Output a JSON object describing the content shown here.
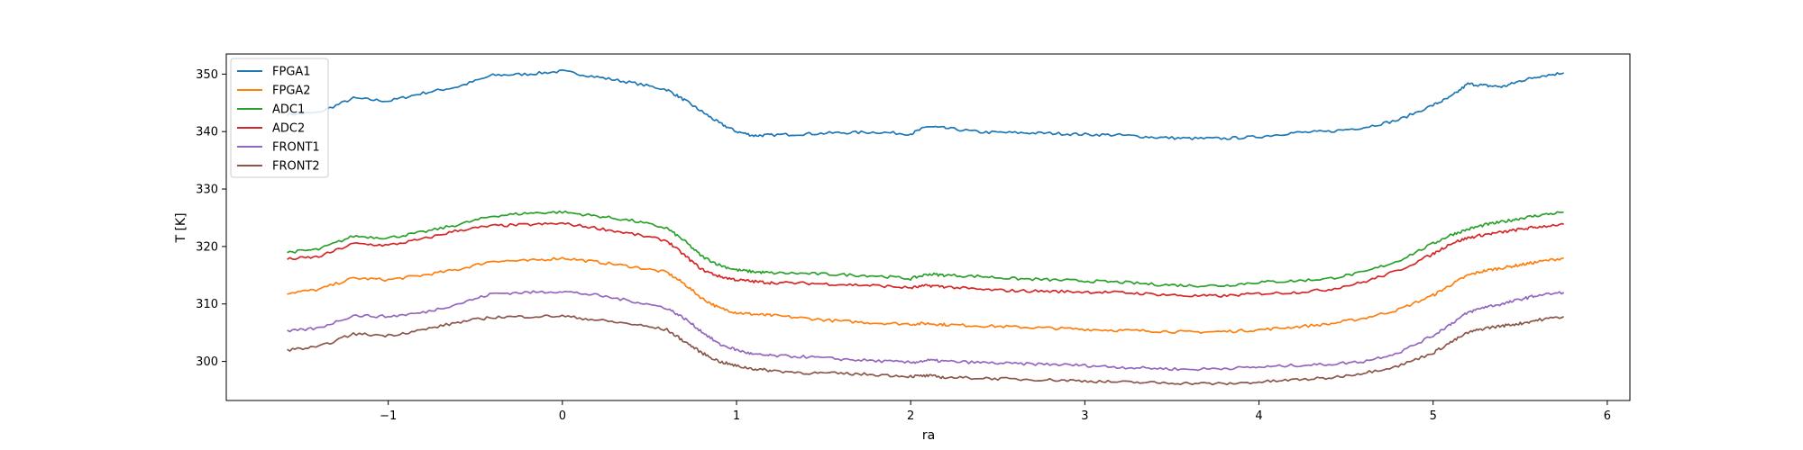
{
  "chart_data": {
    "type": "line",
    "title": "",
    "xlabel": "ra",
    "ylabel": "T [K]",
    "xlim": [
      -1.93,
      6.13
    ],
    "ylim": [
      293.2,
      353.5
    ],
    "xticks": [
      -1,
      0,
      1,
      2,
      3,
      4,
      5,
      6
    ],
    "xtick_labels": [
      "−1",
      "0",
      "1",
      "2",
      "3",
      "4",
      "5",
      "6"
    ],
    "yticks": [
      300,
      310,
      320,
      330,
      340,
      350
    ],
    "ytick_labels": [
      "300",
      "310",
      "320",
      "330",
      "340",
      "350"
    ],
    "grid": false,
    "legend_position": "top-left",
    "x": [
      -1.58,
      -1.4,
      -1.2,
      -1.0,
      -0.8,
      -0.6,
      -0.4,
      -0.2,
      0.0,
      0.2,
      0.4,
      0.6,
      0.7,
      0.8,
      0.9,
      1.0,
      1.1,
      1.2,
      1.4,
      1.6,
      1.8,
      2.0,
      2.1,
      2.2,
      2.4,
      2.6,
      2.8,
      3.0,
      3.2,
      3.4,
      3.6,
      3.8,
      4.0,
      4.2,
      4.4,
      4.6,
      4.8,
      5.0,
      5.1,
      5.2,
      5.3,
      5.4,
      5.5,
      5.6,
      5.75
    ],
    "series": [
      {
        "name": "FPGA1",
        "color": "#1f77b4",
        "values": [
          343.0,
          343.3,
          345.8,
          345.3,
          346.7,
          347.8,
          349.8,
          350.0,
          350.5,
          349.5,
          348.5,
          347.3,
          345.5,
          343.5,
          341.5,
          340.0,
          339.3,
          339.4,
          339.6,
          339.8,
          339.9,
          339.6,
          340.9,
          340.6,
          339.9,
          339.8,
          339.7,
          339.5,
          339.4,
          339.0,
          338.8,
          338.8,
          339.1,
          339.8,
          340.0,
          340.7,
          342.0,
          344.6,
          346.0,
          348.3,
          348.0,
          347.8,
          348.8,
          349.6,
          350.2
        ]
      },
      {
        "name": "FPGA2",
        "color": "#ff7f0e",
        "values": [
          311.9,
          312.5,
          314.5,
          314.2,
          315.0,
          316.0,
          317.5,
          317.5,
          318.0,
          317.3,
          316.5,
          315.5,
          313.5,
          311.0,
          309.3,
          308.5,
          308.2,
          308.0,
          307.5,
          307.0,
          306.7,
          306.5,
          306.6,
          306.4,
          306.2,
          306.0,
          305.8,
          305.6,
          305.4,
          305.3,
          305.1,
          305.2,
          305.5,
          306.0,
          306.5,
          307.5,
          309.0,
          311.5,
          313.3,
          315.0,
          315.8,
          316.3,
          316.8,
          317.3,
          318.0
        ]
      },
      {
        "name": "ADC1",
        "color": "#2ca02c",
        "values": [
          319.0,
          319.5,
          321.8,
          321.5,
          322.5,
          323.8,
          325.3,
          325.8,
          326.0,
          325.3,
          324.5,
          323.2,
          321.0,
          318.3,
          316.8,
          315.9,
          315.6,
          315.4,
          315.3,
          315.1,
          314.9,
          314.4,
          315.2,
          315.0,
          314.8,
          314.4,
          314.2,
          314.0,
          313.8,
          313.4,
          313.2,
          313.2,
          313.8,
          314.0,
          314.4,
          315.5,
          317.5,
          320.5,
          322.0,
          323.0,
          323.8,
          324.3,
          324.9,
          325.4,
          326.0
        ]
      },
      {
        "name": "ADC2",
        "color": "#d62728",
        "values": [
          317.8,
          318.2,
          320.5,
          320.2,
          321.3,
          322.8,
          323.6,
          323.8,
          324.0,
          323.2,
          322.2,
          321.0,
          318.5,
          316.0,
          314.8,
          314.2,
          313.9,
          313.7,
          313.6,
          313.4,
          313.2,
          312.8,
          313.2,
          313.0,
          312.5,
          312.3,
          312.2,
          312.1,
          312.0,
          311.7,
          311.4,
          311.4,
          311.8,
          312.0,
          312.5,
          313.8,
          315.8,
          318.7,
          320.5,
          321.5,
          322.1,
          322.5,
          323.0,
          323.4,
          323.9
        ]
      },
      {
        "name": "FRONT1",
        "color": "#9467bd",
        "values": [
          305.2,
          305.8,
          308.0,
          307.8,
          308.5,
          310.0,
          311.8,
          312.0,
          312.2,
          311.5,
          310.5,
          309.3,
          307.5,
          305.2,
          303.0,
          302.0,
          301.2,
          301.0,
          300.8,
          300.4,
          300.1,
          299.8,
          300.2,
          300.0,
          299.8,
          299.6,
          299.5,
          299.3,
          299.0,
          298.8,
          298.6,
          298.8,
          299.0,
          299.3,
          299.5,
          300.0,
          301.5,
          304.5,
          306.5,
          308.5,
          309.5,
          310.0,
          310.8,
          311.5,
          312.0
        ]
      },
      {
        "name": "FRONT2",
        "color": "#8c564b",
        "values": [
          302.0,
          302.5,
          304.8,
          304.5,
          305.5,
          306.8,
          307.7,
          307.8,
          307.9,
          307.2,
          306.5,
          305.5,
          303.5,
          301.5,
          300.0,
          299.2,
          298.7,
          298.4,
          298.0,
          297.9,
          297.7,
          297.4,
          297.5,
          297.2,
          297.1,
          296.9,
          296.8,
          296.6,
          296.4,
          296.3,
          296.2,
          296.1,
          296.4,
          296.8,
          297.1,
          298.0,
          299.2,
          301.5,
          303.3,
          305.0,
          305.8,
          306.2,
          306.6,
          307.2,
          307.8
        ]
      }
    ]
  }
}
